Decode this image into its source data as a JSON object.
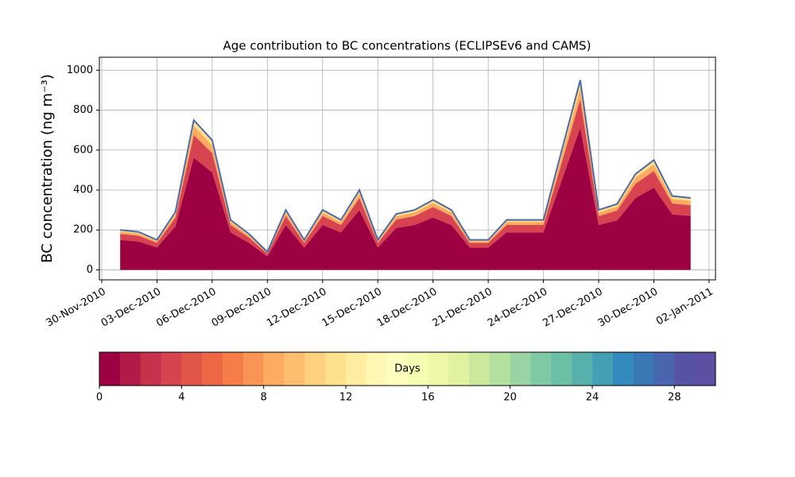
{
  "chart_data": {
    "type": "stacked_area",
    "title": "Age contribution to BC concentrations (ECLIPSEv6 and CAMS)",
    "y_label": "BC concentration (ng m⁻³)",
    "x": [
      "2010-12-01",
      "2010-12-02",
      "2010-12-03",
      "2010-12-04",
      "2010-12-05",
      "2010-12-06",
      "2010-12-07",
      "2010-12-08",
      "2010-12-09",
      "2010-12-10",
      "2010-12-11",
      "2010-12-12",
      "2010-12-13",
      "2010-12-14",
      "2010-12-15",
      "2010-12-16",
      "2010-12-17",
      "2010-12-18",
      "2010-12-19",
      "2010-12-20",
      "2010-12-21",
      "2010-12-22",
      "2010-12-23",
      "2010-12-24",
      "2010-12-25",
      "2010-12-26",
      "2010-12-27",
      "2010-12-28",
      "2010-12-29",
      "2010-12-30",
      "2010-12-31",
      "2011-01-01"
    ],
    "series": [
      {
        "color": "#9e0142",
        "values": [
          150,
          142,
          112,
          218,
          562,
          488,
          188,
          135,
          68,
          225,
          112,
          225,
          188,
          300,
          112,
          210,
          225,
          262,
          225,
          112,
          112,
          188,
          188,
          188,
          450,
          712,
          225,
          248,
          360,
          412,
          278,
          270
        ]
      },
      {
        "color": "#d7434f",
        "values": [
          30,
          29,
          23,
          43,
          113,
          97,
          37,
          27,
          13,
          45,
          23,
          45,
          37,
          60,
          23,
          42,
          45,
          53,
          45,
          23,
          23,
          37,
          37,
          37,
          90,
          143,
          45,
          49,
          72,
          83,
          55,
          54
        ]
      },
      {
        "color": "#fdab61",
        "values": [
          12,
          11,
          9,
          17,
          45,
          39,
          15,
          11,
          5,
          18,
          9,
          18,
          15,
          24,
          9,
          17,
          18,
          21,
          18,
          9,
          9,
          15,
          15,
          15,
          36,
          57,
          18,
          20,
          29,
          33,
          22,
          22
        ]
      },
      {
        "color": "#fee08b",
        "values": [
          8,
          8,
          6,
          12,
          30,
          26,
          10,
          7,
          4,
          12,
          6,
          12,
          10,
          16,
          6,
          11,
          12,
          14,
          12,
          6,
          6,
          10,
          10,
          10,
          24,
          38,
          12,
          13,
          19,
          22,
          15,
          14
        ]
      }
    ],
    "edge_color": "#4b6aa8",
    "xlim": [
      "2010-11-30",
      "2011-01-02"
    ],
    "xticks": [
      {
        "value": "2010-11-30",
        "label": "30-Nov-2010"
      },
      {
        "value": "2010-12-03",
        "label": "03-Dec-2010"
      },
      {
        "value": "2010-12-06",
        "label": "06-Dec-2010"
      },
      {
        "value": "2010-12-09",
        "label": "09-Dec-2010"
      },
      {
        "value": "2010-12-12",
        "label": "12-Dec-2010"
      },
      {
        "value": "2010-12-15",
        "label": "15-Dec-2010"
      },
      {
        "value": "2010-12-18",
        "label": "18-Dec-2010"
      },
      {
        "value": "2010-12-21",
        "label": "21-Dec-2010"
      },
      {
        "value": "2010-12-24",
        "label": "24-Dec-2010"
      },
      {
        "value": "2010-12-27",
        "label": "27-Dec-2010"
      },
      {
        "value": "2010-12-30",
        "label": "30-Dec-2010"
      },
      {
        "value": "2011-01-02",
        "label": "02-Jan-2011"
      }
    ],
    "ylim": [
      -50,
      1065
    ],
    "yticks": [
      0,
      200,
      400,
      600,
      800,
      1000
    ],
    "grid": true,
    "colorbar": {
      "label": "Days",
      "lim": [
        0,
        30
      ],
      "ticks": [
        0,
        4,
        8,
        12,
        16,
        20,
        24,
        28
      ],
      "colors": [
        "#9e0142",
        "#b31a48",
        "#c7314c",
        "#d7434f",
        "#e25649",
        "#ed6745",
        "#f57d4a",
        "#f99456",
        "#fdab61",
        "#fdbe6f",
        "#fed07f",
        "#fee18f",
        "#feeda1",
        "#fff8b4",
        "#fffebe",
        "#f7fcb3",
        "#eef8a6",
        "#e0f29f",
        "#cbe99d",
        "#b4df9f",
        "#9bd4a4",
        "#80c9a5",
        "#6bbfa5",
        "#58b0aa",
        "#449eb4",
        "#3489bd",
        "#3a77b5",
        "#4865ad",
        "#5652a4",
        "#5e4fa2"
      ]
    }
  }
}
